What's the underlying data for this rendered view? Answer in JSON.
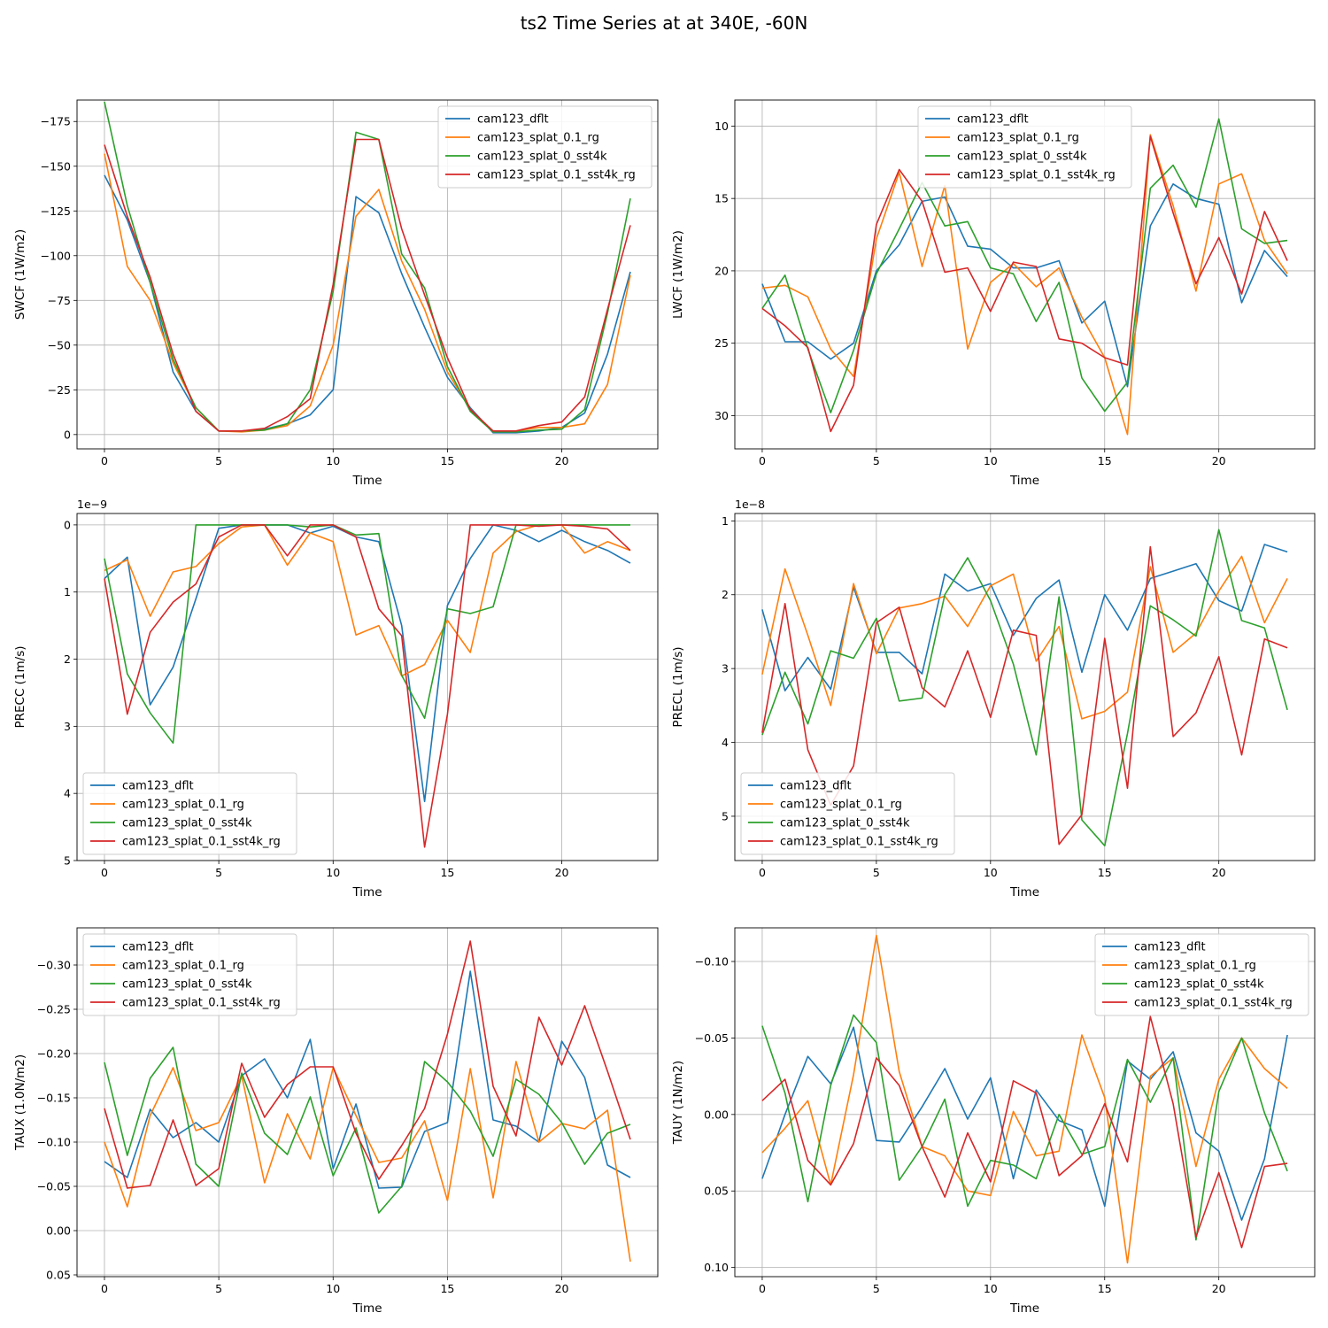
{
  "figure": {
    "title": "ts2 Time Series at at 340E, -60N"
  },
  "colors": {
    "cam123_dflt": "#1f77b4",
    "cam123_splat_0.1_rg": "#ff7f0e",
    "cam123_splat_0_sst4k": "#2ca02c",
    "cam123_splat_0.1_sst4k_rg": "#d62728"
  },
  "chart_data": [
    {
      "type": "line",
      "id": "swcf",
      "title": "",
      "xlabel": "Time",
      "ylabel": "SWCF (1W/m2)",
      "x": [
        0,
        1,
        2,
        3,
        4,
        5,
        6,
        7,
        8,
        9,
        10,
        11,
        12,
        13,
        14,
        15,
        16,
        17,
        18,
        19,
        20,
        21,
        22,
        23
      ],
      "xlim": [
        -1.2,
        24.2
      ],
      "ylim": [
        8,
        -187
      ],
      "xticks": [
        0,
        5,
        10,
        15,
        20
      ],
      "xtick_labels": [
        "0",
        "5",
        "10",
        "15",
        "20"
      ],
      "yticks": [
        0,
        -25,
        -50,
        -75,
        -100,
        -125,
        -150,
        -175
      ],
      "ytick_labels": [
        "0",
        "−25",
        "−50",
        "−75",
        "−100",
        "−125",
        "−150",
        "−175"
      ],
      "offset_label": "",
      "grid": true,
      "legend_loc": "upper-right",
      "series": [
        {
          "name": "cam123_dflt",
          "values": [
            -145,
            -120,
            -85,
            -35,
            -13,
            -2,
            -2,
            -3,
            -6,
            -11,
            -25,
            -133,
            -124,
            -90,
            -60,
            -32,
            -15,
            -1,
            -1,
            -2,
            -4,
            -12,
            -45,
            -91
          ]
        },
        {
          "name": "cam123_splat_0.1_rg",
          "values": [
            -157,
            -94,
            -75,
            -40,
            -15,
            -2,
            -1.5,
            -2.5,
            -5,
            -16,
            -50,
            -122,
            -137,
            -97,
            -70,
            -35,
            -14,
            -1.5,
            -2,
            -4,
            -4,
            -6,
            -28,
            -89
          ]
        },
        {
          "name": "cam123_splat_0_sst4k",
          "values": [
            -186,
            -128,
            -85,
            -42,
            -15,
            -2,
            -2,
            -2.5,
            -6,
            -25,
            -80,
            -169,
            -165,
            -101,
            -82,
            -38,
            -13,
            -1.5,
            -1.5,
            -2.5,
            -3,
            -14,
            -68,
            -132
          ]
        },
        {
          "name": "cam123_splat_0.1_sst4k_rg",
          "values": [
            -162,
            -122,
            -88,
            -45,
            -13,
            -2,
            -2,
            -3.5,
            -10,
            -20,
            -84,
            -165,
            -165,
            -115,
            -78,
            -43,
            -14,
            -2,
            -2,
            -5,
            -7,
            -21,
            -70,
            -117
          ]
        }
      ]
    },
    {
      "type": "line",
      "id": "lwcf",
      "title": "",
      "xlabel": "Time",
      "ylabel": "LWCF (1W/m2)",
      "x": [
        0,
        1,
        2,
        3,
        4,
        5,
        6,
        7,
        8,
        9,
        10,
        11,
        12,
        13,
        14,
        15,
        16,
        17,
        18,
        19,
        20,
        21,
        22,
        23
      ],
      "xlim": [
        -1.2,
        24.2
      ],
      "ylim": [
        32.3,
        8.2
      ],
      "xticks": [
        0,
        5,
        10,
        15,
        20
      ],
      "xtick_labels": [
        "0",
        "5",
        "10",
        "15",
        "20"
      ],
      "yticks": [
        10,
        15,
        20,
        25,
        30
      ],
      "ytick_labels": [
        "10",
        "15",
        "20",
        "25",
        "30"
      ],
      "offset_label": "",
      "grid": true,
      "legend_loc": "upper-center",
      "series": [
        {
          "name": "cam123_dflt",
          "values": [
            20.9,
            24.9,
            24.9,
            26.1,
            25.0,
            20.0,
            18.2,
            15.2,
            14.9,
            18.3,
            18.5,
            19.8,
            19.8,
            19.3,
            23.6,
            22.1,
            28.0,
            16.9,
            14.0,
            15.0,
            15.4,
            22.2,
            18.6,
            20.4
          ]
        },
        {
          "name": "cam123_splat_0.1_rg",
          "values": [
            21.2,
            21.0,
            21.8,
            25.4,
            27.3,
            17.8,
            13.2,
            19.7,
            14.1,
            25.4,
            20.8,
            19.5,
            21.1,
            19.8,
            23.2,
            26.0,
            31.3,
            10.6,
            15.5,
            21.4,
            14.0,
            13.3,
            17.9,
            20.2
          ]
        },
        {
          "name": "cam123_splat_0_sst4k",
          "values": [
            22.6,
            20.3,
            25.4,
            29.8,
            25.5,
            20.2,
            17.1,
            13.9,
            16.9,
            16.6,
            19.8,
            20.2,
            23.5,
            20.8,
            27.4,
            29.7,
            27.7,
            14.3,
            12.7,
            15.6,
            9.5,
            17.1,
            18.1,
            17.9
          ]
        },
        {
          "name": "cam123_splat_0.1_sst4k_rg",
          "values": [
            22.6,
            23.8,
            25.3,
            31.1,
            27.9,
            16.8,
            13.0,
            15.2,
            20.1,
            19.8,
            22.8,
            19.4,
            19.7,
            24.7,
            25.0,
            26.0,
            26.5,
            10.7,
            16.0,
            20.9,
            17.7,
            21.6,
            15.9,
            19.3
          ]
        }
      ]
    },
    {
      "type": "line",
      "id": "precc",
      "title": "",
      "xlabel": "Time",
      "ylabel": "PRECC (1m/s)",
      "x": [
        0,
        1,
        2,
        3,
        4,
        5,
        6,
        7,
        8,
        9,
        10,
        11,
        12,
        13,
        14,
        15,
        16,
        17,
        18,
        19,
        20,
        21,
        22,
        23
      ],
      "xlim": [
        -1.2,
        24.2
      ],
      "ylim": [
        5.0,
        -0.17
      ],
      "xticks": [
        0,
        5,
        10,
        15,
        20
      ],
      "xtick_labels": [
        "0",
        "5",
        "10",
        "15",
        "20"
      ],
      "yticks": [
        0,
        1,
        2,
        3,
        4,
        5
      ],
      "ytick_labels": [
        "0",
        "1",
        "2",
        "3",
        "4",
        "5"
      ],
      "offset_label": "1e−9",
      "grid": true,
      "legend_loc": "lower-left",
      "series": [
        {
          "name": "cam123_dflt",
          "values": [
            0.8,
            0.48,
            2.68,
            2.12,
            1.1,
            0.05,
            0.0,
            0.0,
            0.0,
            0.12,
            0.02,
            0.18,
            0.25,
            1.5,
            4.12,
            1.2,
            0.5,
            0.0,
            0.08,
            0.25,
            0.08,
            0.25,
            0.38,
            0.57
          ]
        },
        {
          "name": "cam123_splat_0.1_rg",
          "values": [
            0.68,
            0.52,
            1.36,
            0.7,
            0.62,
            0.28,
            0.03,
            0.0,
            0.6,
            0.12,
            0.25,
            1.64,
            1.5,
            2.25,
            2.08,
            1.42,
            1.9,
            0.42,
            0.1,
            0.0,
            0.0,
            0.42,
            0.25,
            0.38
          ]
        },
        {
          "name": "cam123_splat_0_sst4k",
          "values": [
            0.5,
            2.22,
            2.8,
            3.25,
            0.0,
            0.0,
            0.0,
            0.0,
            0.0,
            0.03,
            0.0,
            0.15,
            0.13,
            2.24,
            2.88,
            1.25,
            1.32,
            1.22,
            0.0,
            0.0,
            0.0,
            0.0,
            0.0,
            0.0
          ]
        },
        {
          "name": "cam123_splat_0.1_sst4k_rg",
          "values": [
            0.8,
            2.82,
            1.6,
            1.15,
            0.88,
            0.18,
            0.0,
            0.0,
            0.46,
            0.0,
            0.0,
            0.18,
            1.25,
            1.65,
            4.8,
            2.82,
            0.0,
            0.0,
            0.0,
            0.02,
            0.0,
            0.02,
            0.06,
            0.38
          ]
        }
      ]
    },
    {
      "type": "line",
      "id": "precl",
      "title": "",
      "xlabel": "Time",
      "ylabel": "PRECL (1m/s)",
      "x": [
        0,
        1,
        2,
        3,
        4,
        5,
        6,
        7,
        8,
        9,
        10,
        11,
        12,
        13,
        14,
        15,
        16,
        17,
        18,
        19,
        20,
        21,
        22,
        23
      ],
      "xlim": [
        -1.2,
        24.2
      ],
      "ylim": [
        5.6,
        0.9
      ],
      "xticks": [
        0,
        5,
        10,
        15,
        20
      ],
      "xtick_labels": [
        "0",
        "5",
        "10",
        "15",
        "20"
      ],
      "yticks": [
        1,
        2,
        3,
        4,
        5
      ],
      "ytick_labels": [
        "1",
        "2",
        "3",
        "4",
        "5"
      ],
      "offset_label": "1e−8",
      "grid": true,
      "legend_loc": "lower-left",
      "series": [
        {
          "name": "cam123_dflt",
          "values": [
            2.2,
            3.3,
            2.85,
            3.28,
            1.9,
            2.78,
            2.78,
            3.07,
            1.72,
            1.95,
            1.85,
            2.55,
            2.05,
            1.8,
            3.05,
            2.0,
            2.48,
            1.78,
            1.68,
            1.58,
            2.08,
            2.22,
            1.32,
            1.42
          ]
        },
        {
          "name": "cam123_splat_0.1_rg",
          "values": [
            3.08,
            1.65,
            2.55,
            3.5,
            1.85,
            2.8,
            2.18,
            2.12,
            2.02,
            2.43,
            1.88,
            1.72,
            2.9,
            2.43,
            3.68,
            3.58,
            3.32,
            1.62,
            2.78,
            2.52,
            1.95,
            1.48,
            2.38,
            1.78
          ]
        },
        {
          "name": "cam123_splat_0_sst4k",
          "values": [
            3.9,
            3.05,
            3.75,
            2.76,
            2.86,
            2.32,
            3.44,
            3.4,
            2.0,
            1.5,
            2.08,
            2.94,
            4.17,
            2.03,
            5.05,
            5.4,
            3.88,
            2.15,
            2.34,
            2.56,
            1.12,
            2.35,
            2.45,
            3.56
          ]
        },
        {
          "name": "cam123_splat_0.1_sst4k_rg",
          "values": [
            3.87,
            2.12,
            4.1,
            4.85,
            4.32,
            2.38,
            2.17,
            3.26,
            3.52,
            2.76,
            3.66,
            2.48,
            2.55,
            5.38,
            4.98,
            2.59,
            4.62,
            1.35,
            3.92,
            3.6,
            2.84,
            4.17,
            2.6,
            2.72
          ]
        }
      ]
    },
    {
      "type": "line",
      "id": "taux",
      "title": "",
      "xlabel": "Time",
      "ylabel": "TAUX (1.0N/m2)",
      "x": [
        0,
        1,
        2,
        3,
        4,
        5,
        6,
        7,
        8,
        9,
        10,
        11,
        12,
        13,
        14,
        15,
        16,
        17,
        18,
        19,
        20,
        21,
        22,
        23
      ],
      "xlim": [
        -1.2,
        24.2
      ],
      "ylim": [
        0.052,
        -0.342
      ],
      "xticks": [
        0,
        5,
        10,
        15,
        20
      ],
      "xtick_labels": [
        "0",
        "5",
        "10",
        "15",
        "20"
      ],
      "yticks": [
        0.05,
        0.0,
        -0.05,
        -0.1,
        -0.15,
        -0.2,
        -0.25,
        -0.3
      ],
      "ytick_labels": [
        "0.05",
        "0.00",
        "−0.05",
        "−0.10",
        "−0.15",
        "−0.20",
        "−0.25",
        "−0.30"
      ],
      "offset_label": "",
      "grid": true,
      "legend_loc": "upper-left",
      "series": [
        {
          "name": "cam123_dflt",
          "values": [
            -0.078,
            -0.06,
            -0.137,
            -0.105,
            -0.122,
            -0.1,
            -0.175,
            -0.194,
            -0.15,
            -0.216,
            -0.07,
            -0.143,
            -0.048,
            -0.049,
            -0.112,
            -0.122,
            -0.293,
            -0.125,
            -0.118,
            -0.1,
            -0.214,
            -0.173,
            -0.074,
            -0.06
          ]
        },
        {
          "name": "cam123_splat_0.1_rg",
          "values": [
            -0.1,
            -0.027,
            -0.13,
            -0.184,
            -0.113,
            -0.122,
            -0.175,
            -0.054,
            -0.132,
            -0.081,
            -0.184,
            -0.13,
            -0.077,
            -0.082,
            -0.124,
            -0.034,
            -0.183,
            -0.037,
            -0.191,
            -0.1,
            -0.121,
            -0.115,
            -0.136,
            0.035
          ]
        },
        {
          "name": "cam123_splat_0_sst4k",
          "values": [
            -0.19,
            -0.085,
            -0.172,
            -0.207,
            -0.075,
            -0.05,
            -0.178,
            -0.11,
            -0.086,
            -0.151,
            -0.062,
            -0.116,
            -0.02,
            -0.05,
            -0.191,
            -0.168,
            -0.135,
            -0.084,
            -0.171,
            -0.154,
            -0.122,
            -0.075,
            -0.11,
            -0.12
          ]
        },
        {
          "name": "cam123_splat_0.1_sst4k_rg",
          "values": [
            -0.138,
            -0.048,
            -0.051,
            -0.125,
            -0.051,
            -0.07,
            -0.189,
            -0.128,
            -0.165,
            -0.185,
            -0.185,
            -0.11,
            -0.058,
            -0.096,
            -0.138,
            -0.222,
            -0.327,
            -0.163,
            -0.107,
            -0.241,
            -0.187,
            -0.254,
            -0.18,
            -0.103
          ]
        }
      ]
    },
    {
      "type": "line",
      "id": "tauy",
      "title": "",
      "xlabel": "Time",
      "ylabel": "TAUY (1N/m2)",
      "x": [
        0,
        1,
        2,
        3,
        4,
        5,
        6,
        7,
        8,
        9,
        10,
        11,
        12,
        13,
        14,
        15,
        16,
        17,
        18,
        19,
        20,
        21,
        22,
        23
      ],
      "xlim": [
        -1.2,
        24.2
      ],
      "ylim": [
        0.106,
        -0.122
      ],
      "xticks": [
        0,
        5,
        10,
        15,
        20
      ],
      "xtick_labels": [
        "0",
        "5",
        "10",
        "15",
        "20"
      ],
      "yticks": [
        0.1,
        0.05,
        0.0,
        -0.05,
        -0.1
      ],
      "ytick_labels": [
        "0.10",
        "0.05",
        "0.00",
        "−0.05",
        "−0.10"
      ],
      "offset_label": "",
      "grid": true,
      "legend_loc": "upper-right",
      "series": [
        {
          "name": "cam123_dflt",
          "values": [
            0.042,
            0.0,
            -0.038,
            -0.02,
            -0.057,
            0.017,
            0.018,
            -0.005,
            -0.03,
            0.003,
            -0.024,
            0.042,
            -0.016,
            0.004,
            0.01,
            0.06,
            -0.035,
            -0.023,
            -0.041,
            0.012,
            0.024,
            0.069,
            0.029,
            -0.052
          ]
        },
        {
          "name": "cam123_splat_0.1_rg",
          "values": [
            0.025,
            0.009,
            -0.009,
            0.046,
            -0.026,
            -0.117,
            -0.028,
            0.021,
            0.027,
            0.05,
            0.053,
            -0.002,
            0.027,
            0.024,
            -0.052,
            -0.011,
            0.097,
            -0.025,
            -0.037,
            0.034,
            -0.023,
            -0.05,
            -0.03,
            -0.017
          ]
        },
        {
          "name": "cam123_splat_0_sst4k",
          "values": [
            -0.058,
            -0.014,
            0.057,
            -0.019,
            -0.065,
            -0.047,
            0.043,
            0.021,
            -0.01,
            0.06,
            0.03,
            0.033,
            0.042,
            0.0,
            0.026,
            0.021,
            -0.036,
            -0.008,
            -0.037,
            0.082,
            -0.015,
            -0.05,
            -0.001,
            0.037
          ]
        },
        {
          "name": "cam123_splat_0.1_sst4k_rg",
          "values": [
            -0.009,
            -0.023,
            0.03,
            0.046,
            0.019,
            -0.037,
            -0.019,
            0.021,
            0.054,
            0.012,
            0.044,
            -0.022,
            -0.014,
            0.04,
            0.027,
            -0.007,
            0.031,
            -0.064,
            -0.007,
            0.08,
            0.038,
            0.087,
            0.034,
            0.032
          ]
        }
      ]
    }
  ]
}
